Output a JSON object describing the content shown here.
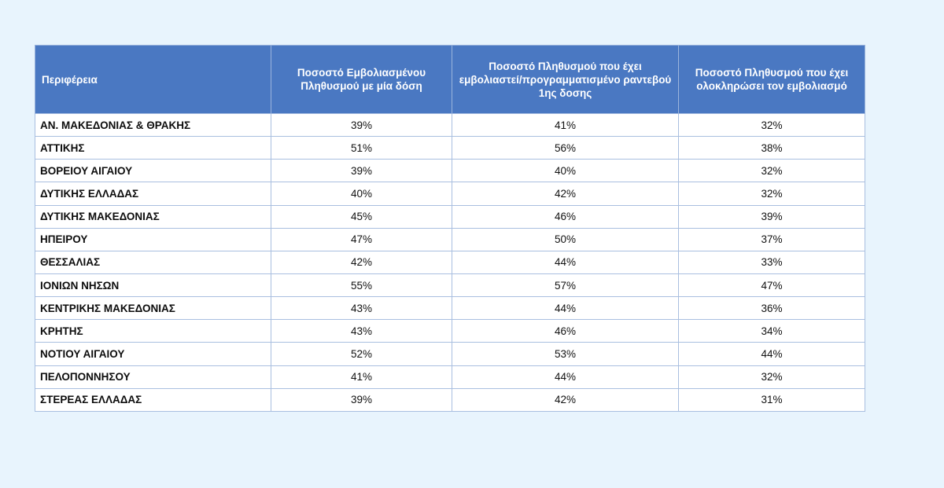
{
  "table": {
    "headers": [
      "Περιφέρεια",
      "Ποσοστό Εμβολιασμένου Πληθυσμού με μία δόση",
      "Ποσοστό Πληθυσμού  που έχει εμβολιαστεί/προγραμματισμένο ραντεβού 1ης δοσης",
      "Ποσοστό Πληθυσμού που έχει ολοκληρώσει τον εμβολιασμό"
    ],
    "rows": [
      [
        "ΑΝ. ΜΑΚΕΔΟΝΙΑΣ & ΘΡΑΚΗΣ",
        "39%",
        "41%",
        "32%"
      ],
      [
        "ΑΤΤΙΚΗΣ",
        "51%",
        "56%",
        "38%"
      ],
      [
        "ΒΟΡΕΙΟΥ ΑΙΓΑΙΟΥ",
        "39%",
        "40%",
        "32%"
      ],
      [
        "ΔΥΤΙΚΗΣ ΕΛΛΑΔΑΣ",
        "40%",
        "42%",
        "32%"
      ],
      [
        "ΔΥΤΙΚΗΣ ΜΑΚΕΔΟΝΙΑΣ",
        "45%",
        "46%",
        "39%"
      ],
      [
        "ΗΠΕΙΡΟΥ",
        "47%",
        "50%",
        "37%"
      ],
      [
        "ΘΕΣΣΑΛΙΑΣ",
        "42%",
        "44%",
        "33%"
      ],
      [
        "ΙΟΝΙΩΝ ΝΗΣΩΝ",
        "55%",
        "57%",
        "47%"
      ],
      [
        "ΚΕΝΤΡΙΚΗΣ ΜΑΚΕΔΟΝΙΑΣ",
        "43%",
        "44%",
        "36%"
      ],
      [
        "ΚΡΗΤΗΣ",
        "43%",
        "46%",
        "34%"
      ],
      [
        "ΝΟΤΙΟΥ ΑΙΓΑΙΟΥ",
        "52%",
        "53%",
        "44%"
      ],
      [
        "ΠΕΛΟΠΟΝΝΗΣΟΥ",
        "41%",
        "44%",
        "32%"
      ],
      [
        "ΣΤΕΡΕΑΣ ΕΛΛΑΔΑΣ",
        "39%",
        "42%",
        "31%"
      ]
    ]
  },
  "colors": {
    "page_background": "#e8f4fd",
    "header_background": "#4a78c2",
    "header_text": "#ffffff",
    "cell_border": "#a9bfe0"
  }
}
